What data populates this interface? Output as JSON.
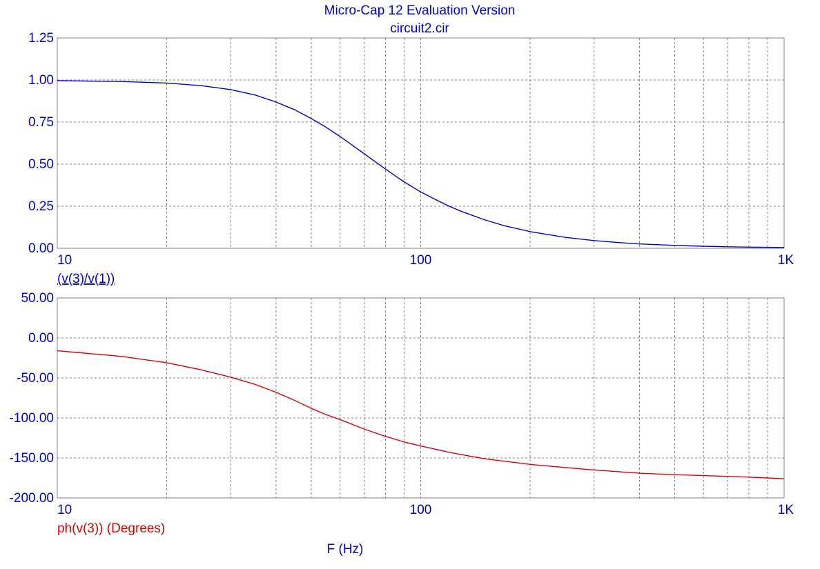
{
  "header": {
    "title": "Micro-Cap 12 Evaluation Version",
    "subtitle": "circuit2.cir"
  },
  "colors": {
    "text": "#0000cc",
    "magnitude": "#0000cc",
    "phase": "#dd0000",
    "grid": "#808080",
    "frame": "#808080"
  },
  "x_axis": {
    "label": "F (Hz)",
    "scale": "log",
    "range": [
      10,
      1000
    ],
    "major_ticks": [
      10,
      100,
      1000
    ],
    "tick_labels": [
      "10",
      "100",
      "1K"
    ],
    "minor_gridlines": [
      20,
      30,
      40,
      50,
      60,
      70,
      80,
      90,
      200,
      300,
      400,
      500,
      600,
      700,
      800,
      900
    ]
  },
  "chart_data": [
    {
      "type": "line",
      "title": "",
      "xlabel": "F (Hz)",
      "ylabel": "(v(3)/v(1))",
      "x_scale": "log",
      "xlim": [
        10,
        1000
      ],
      "ylim": [
        0,
        1.25
      ],
      "y_ticks": [
        0,
        0.25,
        0.5,
        0.75,
        1.0,
        1.25
      ],
      "y_tick_labels": [
        "0.00",
        "0.25",
        "0.50",
        "0.75",
        "1.00",
        "1.25"
      ],
      "grid": true,
      "series": [
        {
          "name": "(v(3)/v(1))",
          "color": "#0000cc",
          "x": [
            10,
            15,
            20,
            25,
            30,
            35,
            40,
            45,
            50,
            55,
            60,
            65,
            70,
            75,
            80,
            85,
            90,
            100,
            110,
            120,
            130,
            150,
            170,
            200,
            250,
            300,
            350,
            400,
            500,
            600,
            700,
            800,
            900,
            1000
          ],
          "y": [
            0.996,
            0.991,
            0.982,
            0.966,
            0.943,
            0.911,
            0.869,
            0.823,
            0.771,
            0.718,
            0.664,
            0.611,
            0.561,
            0.514,
            0.471,
            0.431,
            0.395,
            0.335,
            0.289,
            0.249,
            0.218,
            0.169,
            0.134,
            0.099,
            0.065,
            0.046,
            0.034,
            0.026,
            0.017,
            0.012,
            0.009,
            0.007,
            0.006,
            0.005
          ]
        }
      ]
    },
    {
      "type": "line",
      "title": "",
      "xlabel": "F (Hz)",
      "ylabel": "ph(v(3)) (Degrees)",
      "x_scale": "log",
      "xlim": [
        10,
        1000
      ],
      "ylim": [
        -200,
        50
      ],
      "y_ticks": [
        -200,
        -150,
        -100,
        -50,
        0,
        50
      ],
      "y_tick_labels": [
        "-200.00",
        "-150.00",
        "-100.00",
        "-50.00",
        "0.00",
        "50.00"
      ],
      "grid": true,
      "series": [
        {
          "name": "ph(v(3)) (Degrees)",
          "color": "#dd0000",
          "x": [
            10,
            15,
            20,
            25,
            30,
            35,
            40,
            45,
            50,
            55,
            60,
            70,
            80,
            90,
            100,
            120,
            150,
            200,
            250,
            300,
            400,
            500,
            600,
            700,
            800,
            900,
            1000
          ],
          "y": [
            -16,
            -23,
            -31,
            -40,
            -49,
            -58,
            -68,
            -78,
            -88,
            -96,
            -102,
            -114,
            -123,
            -130,
            -135,
            -143,
            -151,
            -158,
            -162,
            -165,
            -169,
            -171,
            -172,
            -173,
            -174,
            -175,
            -176
          ]
        }
      ]
    }
  ]
}
